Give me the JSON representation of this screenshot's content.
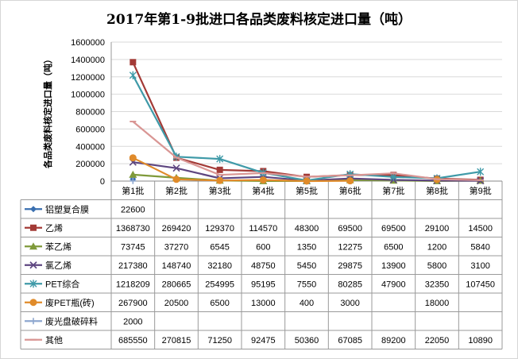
{
  "chart_data": {
    "type": "line",
    "title": "2017年第1-9批进口各品类废料核定进口量（吨）",
    "xlabel": "",
    "ylabel": "各品类废料核定进口量（吨）",
    "ylim": [
      0,
      1600000
    ],
    "yticks": [
      "0",
      "200000",
      "400000",
      "600000",
      "800000",
      "1000000",
      "1200000",
      "1400000",
      "1600000"
    ],
    "grid": true,
    "legend": "data-table",
    "categories": [
      "第1批",
      "第2批",
      "第3批",
      "第4批",
      "第5批",
      "第6批",
      "第7批",
      "第8批",
      "第9批"
    ],
    "series": [
      {
        "name": "铝塑复合膜",
        "color": "#3a6fb0",
        "marker": "diamond",
        "values": [
          22600,
          null,
          null,
          null,
          null,
          null,
          null,
          null,
          null
        ],
        "cells": [
          "22600",
          "",
          "",
          "",
          "",
          "",
          "",
          "",
          ""
        ]
      },
      {
        "name": "乙烯",
        "color": "#a33a36",
        "marker": "square",
        "values": [
          1368730,
          269420,
          129370,
          114570,
          48300,
          69500,
          69500,
          29100,
          14500
        ],
        "cells": [
          "1368730",
          "269420",
          "129370",
          "114570",
          "48300",
          "69500",
          "69500",
          "29100",
          "14500"
        ]
      },
      {
        "name": "苯乙烯",
        "color": "#7f9a3a",
        "marker": "triangle",
        "values": [
          73745,
          37270,
          6545,
          600,
          1350,
          12275,
          6500,
          1200,
          5840
        ],
        "cells": [
          "73745",
          "37270",
          "6545",
          "600",
          "1350",
          "12275",
          "6500",
          "1200",
          "5840"
        ]
      },
      {
        "name": "氯乙烯",
        "color": "#5e4680",
        "marker": "x",
        "values": [
          217380,
          148740,
          32180,
          48750,
          5450,
          29875,
          13900,
          5800,
          3100
        ],
        "cells": [
          "217380",
          "148740",
          "32180",
          "48750",
          "5450",
          "29875",
          "13900",
          "5800",
          "3100"
        ]
      },
      {
        "name": "PET综合",
        "color": "#3f9aa8",
        "marker": "star",
        "values": [
          1218209,
          280665,
          254995,
          95195,
          7550,
          80285,
          47900,
          32350,
          107450
        ],
        "cells": [
          "1218209",
          "280665",
          "254995",
          "95195",
          "7550",
          "80285",
          "47900",
          "32350",
          "107450"
        ]
      },
      {
        "name": "废PET瓶(砖)",
        "color": "#e08b2a",
        "marker": "circle",
        "values": [
          267900,
          20500,
          6500,
          13000,
          400,
          3000,
          null,
          18000,
          null
        ],
        "cells": [
          "267900",
          "20500",
          "6500",
          "13000",
          "400",
          "3000",
          "",
          "18000",
          ""
        ]
      },
      {
        "name": "废光盘破碎料",
        "color": "#8ea7cf",
        "marker": "plus",
        "values": [
          2000,
          null,
          null,
          null,
          null,
          null,
          null,
          null,
          null
        ],
        "cells": [
          "2000",
          "",
          "",
          "",
          "",
          "",
          "",
          "",
          ""
        ]
      },
      {
        "name": "其他",
        "color": "#d99694",
        "marker": "dash",
        "values": [
          685550,
          270815,
          71250,
          92475,
          50360,
          67085,
          89200,
          22050,
          10890
        ],
        "cells": [
          "685550",
          "270815",
          "71250",
          "92475",
          "50360",
          "67085",
          "89200",
          "22050",
          "10890"
        ]
      }
    ]
  }
}
